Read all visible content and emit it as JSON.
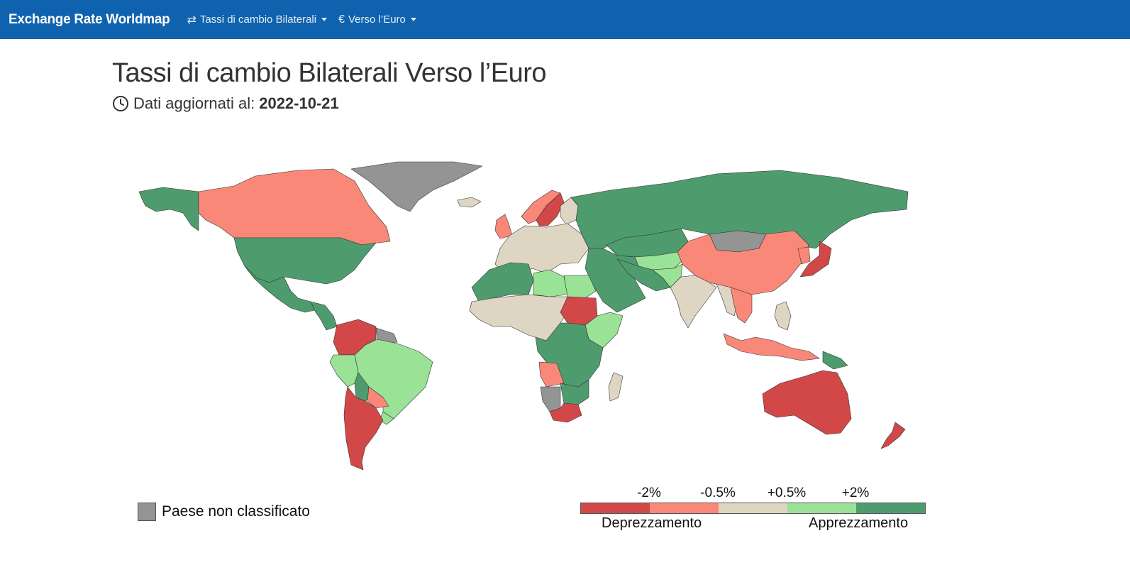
{
  "navbar": {
    "brand": "Exchange Rate Worldmap",
    "items": [
      {
        "icon": "arrows-exchange-icon",
        "glyph": "⇄",
        "label": "Tassi di cambio Bilaterali"
      },
      {
        "icon": "euro-icon",
        "glyph": "€",
        "label": "Verso l’Euro"
      }
    ],
    "background": "#0f62ad"
  },
  "page": {
    "title": "Tassi di cambio Bilaterali Verso l’Euro",
    "updated_label": "Dati aggiornati al:",
    "updated_date": "2022-10-21"
  },
  "legend": {
    "unclassified_label": "Paese non classificato",
    "unclassified_color": "#949494",
    "ticks": [
      "-2%",
      "-0.5%",
      "+0.5%",
      "+2%"
    ],
    "depreciation_label": "Deprezzamento",
    "appreciation_label": "Apprezzamento",
    "bins": [
      {
        "class": "strong-dep",
        "color": "#d24848"
      },
      {
        "class": "dep",
        "color": "#fa8878"
      },
      {
        "class": "stable",
        "color": "#ded5c3"
      },
      {
        "class": "app",
        "color": "#9ae295"
      },
      {
        "class": "strong-app",
        "color": "#4e9c6e"
      }
    ]
  },
  "map": {
    "regions": [
      {
        "name": "alaska",
        "class": "strong-app"
      },
      {
        "name": "canada",
        "class": "dep"
      },
      {
        "name": "greenland",
        "class": "unclassified"
      },
      {
        "name": "usa",
        "class": "strong-app"
      },
      {
        "name": "mexico",
        "class": "strong-app"
      },
      {
        "name": "central-america",
        "class": "strong-app"
      },
      {
        "name": "venezuela-colombia",
        "class": "strong-dep"
      },
      {
        "name": "guyana",
        "class": "unclassified"
      },
      {
        "name": "brazil",
        "class": "app"
      },
      {
        "name": "peru",
        "class": "app"
      },
      {
        "name": "bolivia",
        "class": "strong-app"
      },
      {
        "name": "paraguay",
        "class": "dep"
      },
      {
        "name": "chile-argentina",
        "class": "strong-dep"
      },
      {
        "name": "uruguay",
        "class": "app"
      },
      {
        "name": "iceland",
        "class": "stable"
      },
      {
        "name": "uk",
        "class": "dep"
      },
      {
        "name": "norway",
        "class": "dep"
      },
      {
        "name": "sweden",
        "class": "strong-dep"
      },
      {
        "name": "finland",
        "class": "stable"
      },
      {
        "name": "europe",
        "class": "stable"
      },
      {
        "name": "russia",
        "class": "strong-app"
      },
      {
        "name": "mongolia",
        "class": "unclassified"
      },
      {
        "name": "china",
        "class": "dep"
      },
      {
        "name": "korea",
        "class": "dep"
      },
      {
        "name": "japan",
        "class": "strong-dep"
      },
      {
        "name": "kazakhstan",
        "class": "strong-app"
      },
      {
        "name": "central-asia",
        "class": "app"
      },
      {
        "name": "middle-east",
        "class": "strong-app"
      },
      {
        "name": "iran-pakistan",
        "class": "strong-app"
      },
      {
        "name": "afghanistan",
        "class": "app"
      },
      {
        "name": "india",
        "class": "stable"
      },
      {
        "name": "southeast-asia",
        "class": "stable"
      },
      {
        "name": "indochina",
        "class": "dep"
      },
      {
        "name": "indonesia",
        "class": "dep"
      },
      {
        "name": "papua",
        "class": "strong-app"
      },
      {
        "name": "philippines",
        "class": "stable"
      },
      {
        "name": "australia",
        "class": "strong-dep"
      },
      {
        "name": "new-zealand",
        "class": "strong-dep"
      },
      {
        "name": "north-africa-west",
        "class": "strong-app"
      },
      {
        "name": "libya",
        "class": "app"
      },
      {
        "name": "egypt",
        "class": "app"
      },
      {
        "name": "west-africa",
        "class": "stable"
      },
      {
        "name": "sudan",
        "class": "strong-dep"
      },
      {
        "name": "ethiopia",
        "class": "app"
      },
      {
        "name": "central-africa",
        "class": "strong-app"
      },
      {
        "name": "angola",
        "class": "dep"
      },
      {
        "name": "southern-africa",
        "class": "strong-app"
      },
      {
        "name": "namibia",
        "class": "unclassified"
      },
      {
        "name": "south-africa",
        "class": "strong-dep"
      },
      {
        "name": "madagascar",
        "class": "stable"
      }
    ]
  }
}
